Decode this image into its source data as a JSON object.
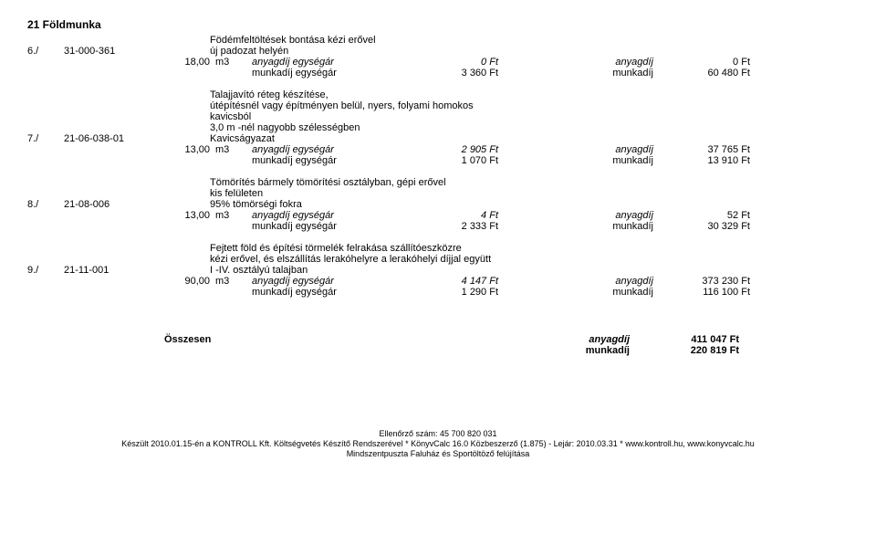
{
  "section_title": "21 Földmunka",
  "items": [
    {
      "num": "6./",
      "code": "31-000-361",
      "desc_lines": [
        "Födémfeltöltések bontása kézi erővel",
        "új padozat helyén"
      ],
      "qty": "18,00",
      "unit": "m3",
      "anyag_unit_label": "anyagdíj egységár",
      "anyag_unit_price": "0 Ft",
      "anyag_label": "anyagdíj",
      "anyag_total": "0 Ft",
      "munka_unit_label": "munkadíj egységár",
      "munka_unit_price": "3 360 Ft",
      "munka_label": "munkadíj",
      "munka_total": "60 480 Ft"
    },
    {
      "num": "7./",
      "code": "21-06-038-01",
      "desc_lines": [
        "Talajjavító réteg készítése,",
        "útépítésnél vagy építményen belül, nyers, folyami homokos",
        "kavicsból",
        "3,0 m -nél nagyobb szélességben",
        "Kavicságyazat"
      ],
      "qty": "13,00",
      "unit": "m3",
      "anyag_unit_label": "anyagdíj egységár",
      "anyag_unit_price": "2 905 Ft",
      "anyag_label": "anyagdíj",
      "anyag_total": "37 765 Ft",
      "munka_unit_label": "munkadíj egységár",
      "munka_unit_price": "1 070 Ft",
      "munka_label": "munkadíj",
      "munka_total": "13 910 Ft"
    },
    {
      "num": "8./",
      "code": "21-08-006",
      "desc_lines": [
        "Tömörítés bármely tömörítési osztályban, gépi erővel",
        "kis felületen",
        "95% tömörségi fokra"
      ],
      "qty": "13,00",
      "unit": "m3",
      "anyag_unit_label": "anyagdíj egységár",
      "anyag_unit_price": "4 Ft",
      "anyag_label": "anyagdíj",
      "anyag_total": "52 Ft",
      "munka_unit_label": "munkadíj egységár",
      "munka_unit_price": "2 333 Ft",
      "munka_label": "munkadíj",
      "munka_total": "30 329 Ft"
    },
    {
      "num": "9./",
      "code": "21-11-001",
      "desc_lines": [
        "Fejtett föld és építési törmelék felrakása szállítóeszközre",
        "kézi erővel, és elszállítás lerakóhelyre a lerakóhelyi díjjal együtt",
        "I -IV. osztályú talajban"
      ],
      "qty": "90,00",
      "unit": "m3",
      "anyag_unit_label": "anyagdíj egységár",
      "anyag_unit_price": "4 147 Ft",
      "anyag_label": "anyagdíj",
      "anyag_total": "373 230 Ft",
      "munka_unit_label": "munkadíj egységár",
      "munka_unit_price": "1 290 Ft",
      "munka_label": "munkadíj",
      "munka_total": "116 100 Ft"
    }
  ],
  "summary": {
    "title": "Összesen",
    "anyag_label": "anyagdíj",
    "anyag_total": "411 047 Ft",
    "munka_label": "munkadíj",
    "munka_total": "220 819 Ft"
  },
  "footer": {
    "line1": "Ellenőrző szám: 45 700 820 031",
    "line2": "Készült 2010.01.15-én a KONTROLL Kft. Költségvetés Készítő Rendszerével * KönyvCalc 16.0 Közbeszerző (1.875) - Lejár: 2010.03.31 * www.kontroll.hu, www.konyvcalc.hu",
    "line3": "Mindszentpuszta Faluház és Sportöltöző felújítása"
  }
}
